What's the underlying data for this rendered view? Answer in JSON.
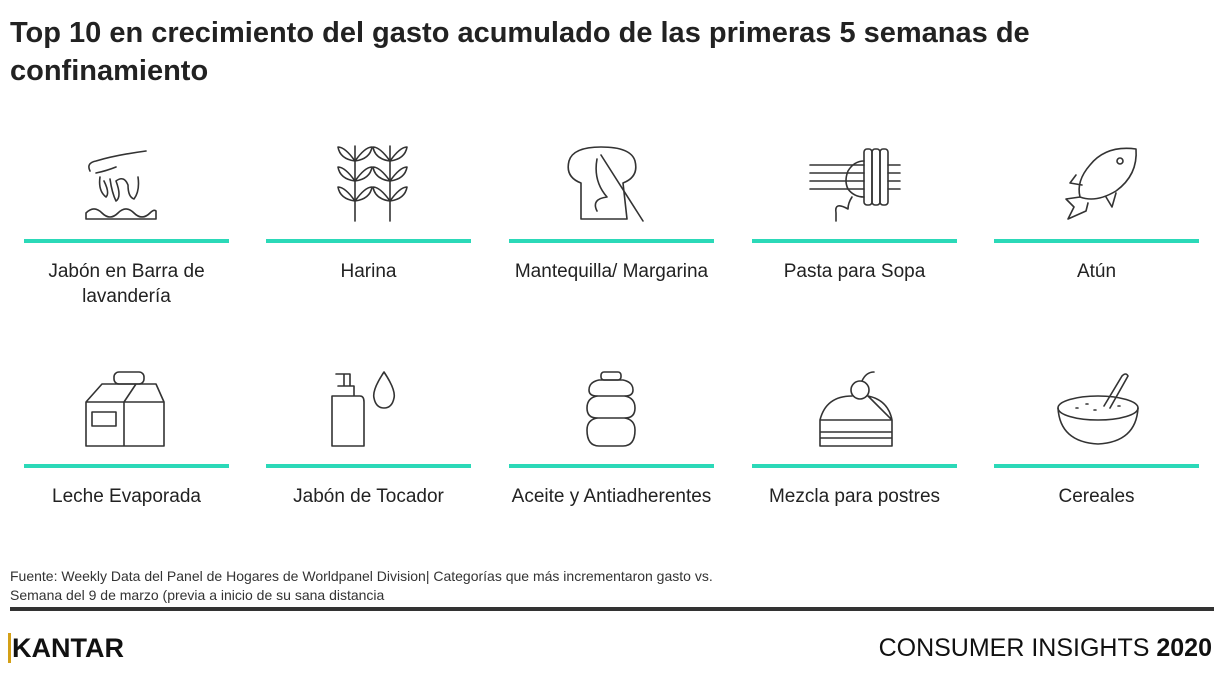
{
  "title": "Top 10  en crecimiento del gasto acumulado de las primeras 5 semanas de confinamiento",
  "accent_color": "#2bd9b8",
  "items": [
    {
      "label": "Jabón en Barra de lavandería",
      "icon": "hand-washing-icon"
    },
    {
      "label": "Harina",
      "icon": "wheat-icon"
    },
    {
      "label": "Mantequilla/ Margarina",
      "icon": "butter-icon"
    },
    {
      "label": "Pasta para Sopa",
      "icon": "pasta-fork-icon"
    },
    {
      "label": "Atún",
      "icon": "fish-icon"
    },
    {
      "label": "Leche Evaporada",
      "icon": "milk-carton-icon"
    },
    {
      "label": "Jabón de Tocador",
      "icon": "soap-dispenser-icon"
    },
    {
      "label": "Aceite y Antiadherentes",
      "icon": "oil-bottle-icon"
    },
    {
      "label": "Mezcla para postres",
      "icon": "cake-icon"
    },
    {
      "label": "Cereales",
      "icon": "cereal-bowl-icon"
    }
  ],
  "source": {
    "line1": "Fuente:  Weekly Data del Panel de Hogares de Worldpanel Division| Categorías que más incrementaron  gasto vs.",
    "line2": "Semana del 9 de marzo (previa a inicio de su sana distancia"
  },
  "footer": {
    "logo": "KANTAR",
    "brand": "CONSUMER INSIGHTS",
    "year": "2020"
  }
}
